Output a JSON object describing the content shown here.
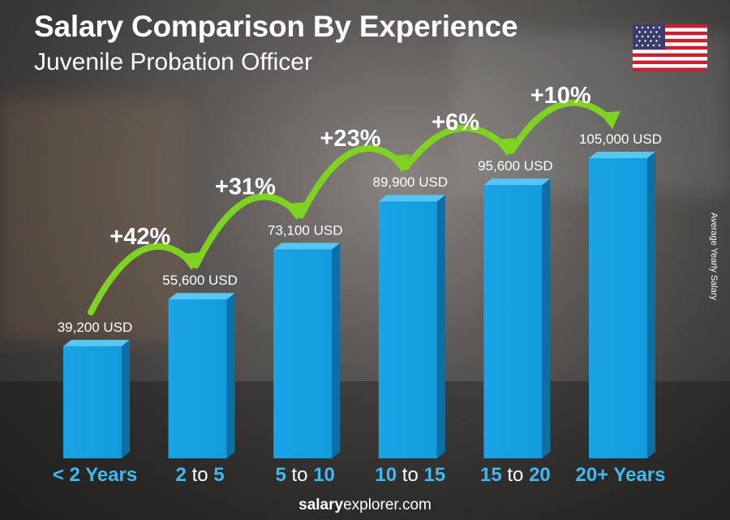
{
  "chart_data": {
    "type": "bar",
    "title": "Salary Comparison By Experience",
    "subtitle": "Juvenile Probation Officer",
    "ylabel": "Average Yearly Salary",
    "categories": [
      {
        "bold": "< 2 Years",
        "thin": "",
        "bold2": ""
      },
      {
        "bold": "2",
        "thin": " to ",
        "bold2": "5"
      },
      {
        "bold": "5",
        "thin": " to ",
        "bold2": "10"
      },
      {
        "bold": "10",
        "thin": " to ",
        "bold2": "15"
      },
      {
        "bold": "15",
        "thin": " to ",
        "bold2": "20"
      },
      {
        "bold": "20+ Years",
        "thin": "",
        "bold2": ""
      }
    ],
    "values": [
      39200,
      55600,
      73100,
      89900,
      95600,
      105000
    ],
    "value_labels": [
      "39,200 USD",
      "55,600 USD",
      "73,100 USD",
      "89,900 USD",
      "95,600 USD",
      "105,000 USD"
    ],
    "increases": [
      "+42%",
      "+31%",
      "+23%",
      "+6%",
      "+10%"
    ],
    "colors": {
      "bar_front": "#1aa3e6",
      "bar_side": "#0d6fa3",
      "bar_top": "#57c6f3",
      "arrow": "#7ed321",
      "category": "#3fb9ef"
    }
  },
  "footer": {
    "brand_bold": "salary",
    "brand_rest": "explorer.com"
  }
}
